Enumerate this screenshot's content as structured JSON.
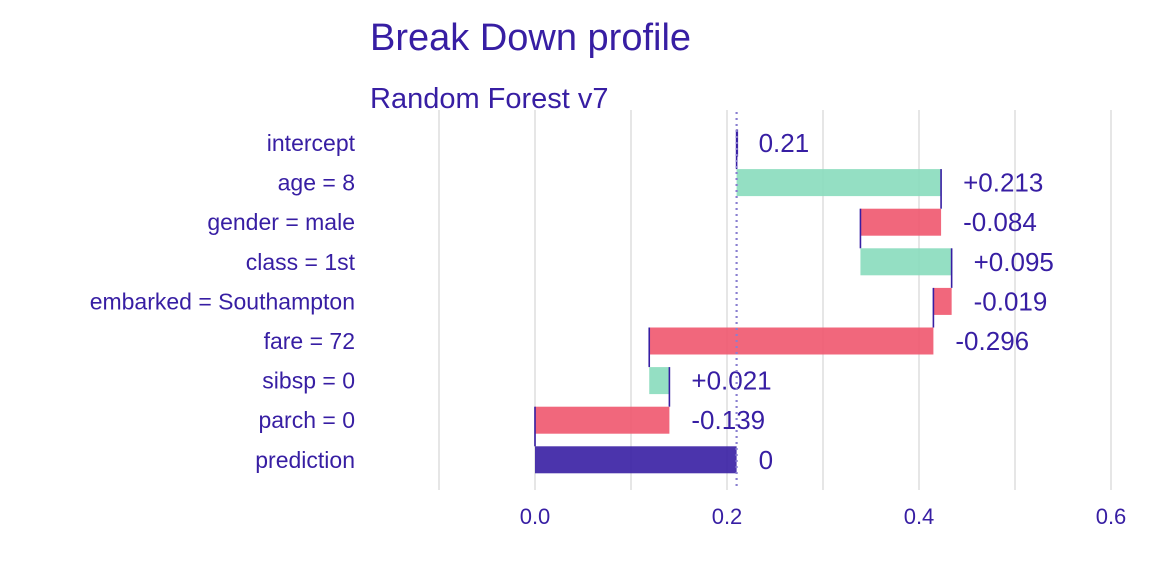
{
  "chart_data": {
    "type": "waterfall",
    "title": "Break Down profile",
    "subtitle": "Random Forest v7",
    "xlabel": "",
    "ylabel": "",
    "xlim": [
      -0.2,
      0.62
    ],
    "xticks": [
      0.0,
      0.2,
      0.4,
      0.6
    ],
    "xtick_labels": [
      "0.0",
      "0.2",
      "0.4",
      "0.6"
    ],
    "grid": true,
    "baseline": 0.21,
    "colors": {
      "positive": "#8bdcbe",
      "negative": "#f05a71",
      "prediction": "#371ea3",
      "text": "#371ea3",
      "grid": "#e6e6e6"
    },
    "rows": [
      {
        "label": "intercept",
        "start": 0.21,
        "end": 0.21,
        "value_label": "0.21",
        "kind": "intercept"
      },
      {
        "label": "age = 8",
        "start": 0.21,
        "end": 0.423,
        "value_label": "+0.213",
        "kind": "positive"
      },
      {
        "label": "gender = male",
        "start": 0.423,
        "end": 0.339,
        "value_label": "-0.084",
        "kind": "negative"
      },
      {
        "label": "class = 1st",
        "start": 0.339,
        "end": 0.434,
        "value_label": "+0.095",
        "kind": "positive"
      },
      {
        "label": "embarked = Southampton",
        "start": 0.434,
        "end": 0.415,
        "value_label": "-0.019",
        "kind": "negative"
      },
      {
        "label": "fare = 72",
        "start": 0.415,
        "end": 0.119,
        "value_label": "-0.296",
        "kind": "negative"
      },
      {
        "label": "sibsp = 0",
        "start": 0.119,
        "end": 0.14,
        "value_label": "+0.021",
        "kind": "positive"
      },
      {
        "label": "parch = 0",
        "start": 0.14,
        "end": 0.0,
        "value_label": "-0.139",
        "kind": "negative"
      },
      {
        "label": "prediction",
        "start": 0.0,
        "end": 0.21,
        "value_label": "0",
        "kind": "prediction"
      }
    ]
  }
}
